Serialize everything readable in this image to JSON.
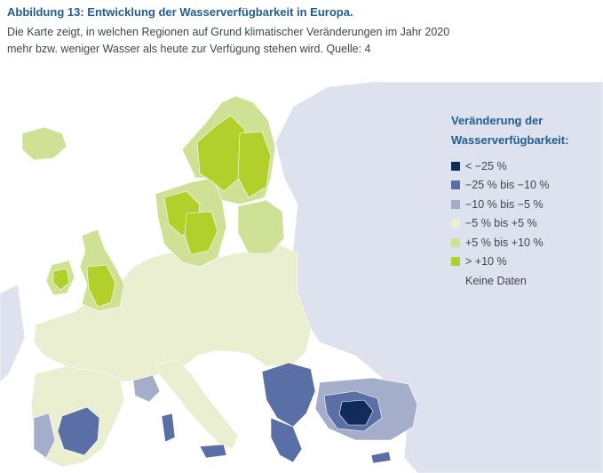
{
  "figure": {
    "title": "Abbildung 13: Entwicklung der Wasserverfügbarkeit in Europa.",
    "subtitle_line1": "Die Karte zeigt, in welchen Regionen auf Grund klimatischer Veränderungen im Jahr 2020",
    "subtitle_line2": "mehr bzw. weniger Wasser als heute zur Verfügung stehen wird. Quelle: 4"
  },
  "legend": {
    "title_line1": "Veränderung der",
    "title_line2": "Wasserverfügbarkeit:",
    "items": [
      {
        "label": "< −25 %",
        "color": "#0f2b59"
      },
      {
        "label": "−25 % bis −10 %",
        "color": "#5a6fa6"
      },
      {
        "label": "−10 % bis −5 %",
        "color": "#a4aecb"
      },
      {
        "label": "−5 % bis +5 %",
        "color": "#e9efd0"
      },
      {
        "label": "+5 % bis +10 %",
        "color": "#cfe195"
      },
      {
        "label": "> +10 %",
        "color": "#b3cf2c"
      },
      {
        "label": "Keine Daten",
        "color": "#dde2ee"
      }
    ]
  },
  "map_colors": {
    "no_data": "#dde2ee",
    "sea": "#ffffff",
    "border": "#ffffff"
  }
}
